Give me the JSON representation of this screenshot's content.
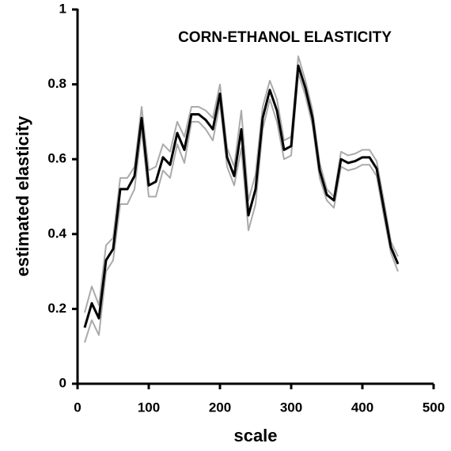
{
  "chart_data": {
    "type": "line",
    "title": "CORN-ETHANOL ELASTICITY",
    "x_label": "scale",
    "y_label": "estimated elasticity",
    "x": [
      10,
      20,
      30,
      40,
      50,
      60,
      70,
      80,
      90,
      100,
      110,
      120,
      130,
      140,
      150,
      160,
      170,
      180,
      190,
      200,
      210,
      220,
      230,
      240,
      250,
      260,
      270,
      280,
      290,
      300,
      310,
      320,
      330,
      340,
      350,
      360,
      370,
      380,
      390,
      400,
      410,
      420,
      430,
      440,
      450
    ],
    "series": [
      {
        "color": "#aaaaaa",
        "values": [
          0.19,
          0.26,
          0.21,
          0.37,
          0.39,
          0.55,
          0.55,
          0.58,
          0.74,
          0.57,
          0.58,
          0.64,
          0.62,
          0.7,
          0.66,
          0.74,
          0.74,
          0.73,
          0.71,
          0.8,
          0.63,
          0.58,
          0.73,
          0.49,
          0.56,
          0.74,
          0.81,
          0.76,
          0.65,
          0.66,
          0.875,
          0.81,
          0.73,
          0.59,
          0.52,
          0.5,
          0.62,
          0.61,
          0.615,
          0.625,
          0.625,
          0.595,
          0.49,
          0.38,
          0.34
        ]
      },
      {
        "color": "#aaaaaa",
        "values": [
          0.11,
          0.17,
          0.13,
          0.3,
          0.33,
          0.48,
          0.48,
          0.52,
          0.68,
          0.5,
          0.5,
          0.57,
          0.55,
          0.64,
          0.59,
          0.7,
          0.7,
          0.68,
          0.65,
          0.75,
          0.58,
          0.53,
          0.63,
          0.41,
          0.48,
          0.68,
          0.76,
          0.7,
          0.6,
          0.61,
          0.83,
          0.77,
          0.69,
          0.55,
          0.49,
          0.47,
          0.58,
          0.57,
          0.575,
          0.585,
          0.585,
          0.555,
          0.45,
          0.35,
          0.3
        ]
      },
      {
        "color": "#000000",
        "values": [
          0.15,
          0.215,
          0.175,
          0.33,
          0.36,
          0.52,
          0.52,
          0.555,
          0.71,
          0.53,
          0.54,
          0.605,
          0.585,
          0.67,
          0.625,
          0.72,
          0.72,
          0.705,
          0.68,
          0.775,
          0.605,
          0.555,
          0.68,
          0.45,
          0.52,
          0.71,
          0.785,
          0.73,
          0.625,
          0.635,
          0.85,
          0.79,
          0.71,
          0.57,
          0.505,
          0.49,
          0.6,
          0.59,
          0.595,
          0.605,
          0.605,
          0.575,
          0.47,
          0.365,
          0.32
        ]
      }
    ],
    "xlim": [
      0,
      500
    ],
    "xticks": [
      0,
      100,
      200,
      300,
      400,
      500
    ],
    "ylim": [
      0,
      1
    ],
    "yticks": [
      0,
      0.2,
      0.4,
      0.6,
      0.8,
      1
    ],
    "grid": false
  }
}
